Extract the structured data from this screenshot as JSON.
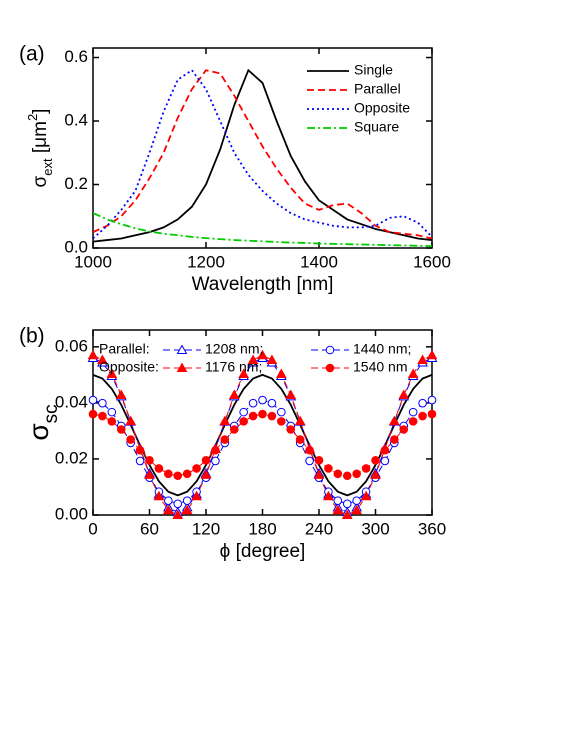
{
  "chart_data": [
    {
      "type": "line",
      "panel_label": "(a)",
      "xlabel": "Wavelength [nm]",
      "ylabel": [
        "σ",
        "ext",
        " [μm",
        "2",
        "]"
      ],
      "x": [
        1000,
        1025,
        1050,
        1075,
        1100,
        1125,
        1150,
        1175,
        1200,
        1225,
        1250,
        1275,
        1300,
        1325,
        1350,
        1375,
        1400,
        1425,
        1450,
        1475,
        1500,
        1525,
        1550,
        1575,
        1600
      ],
      "xlim": [
        1000,
        1600
      ],
      "xticks": [
        1000,
        1200,
        1400,
        1600
      ],
      "ylim": [
        0,
        0.63
      ],
      "yticks": [
        {
          "value": 0,
          "label": "0.0"
        },
        0.2,
        0.4,
        0.6
      ],
      "legend": "upper right",
      "series": [
        {
          "name": "Single",
          "color": "#000000",
          "dash": "solid",
          "values": [
            0.02,
            0.025,
            0.03,
            0.04,
            0.05,
            0.065,
            0.09,
            0.13,
            0.2,
            0.31,
            0.45,
            0.56,
            0.52,
            0.4,
            0.29,
            0.21,
            0.15,
            0.12,
            0.09,
            0.075,
            0.06,
            0.05,
            0.04,
            0.03,
            0.025
          ]
        },
        {
          "name": "Parallel",
          "color": "#ff0000",
          "dash": "dashed",
          "values": [
            0.05,
            0.07,
            0.1,
            0.15,
            0.22,
            0.3,
            0.41,
            0.5,
            0.56,
            0.55,
            0.48,
            0.4,
            0.32,
            0.25,
            0.19,
            0.14,
            0.12,
            0.135,
            0.14,
            0.11,
            0.07,
            0.05,
            0.045,
            0.04,
            0.03
          ]
        },
        {
          "name": "Opposite",
          "color": "#0000ff",
          "dash": "dotted",
          "values": [
            0.03,
            0.07,
            0.12,
            0.18,
            0.3,
            0.43,
            0.53,
            0.56,
            0.5,
            0.4,
            0.3,
            0.23,
            0.18,
            0.14,
            0.11,
            0.09,
            0.08,
            0.07,
            0.065,
            0.065,
            0.07,
            0.095,
            0.1,
            0.08,
            0.035
          ]
        },
        {
          "name": "Square",
          "color": "#00cc00",
          "dash": "dashdot",
          "values": [
            0.11,
            0.09,
            0.075,
            0.062,
            0.052,
            0.045,
            0.04,
            0.035,
            0.031,
            0.028,
            0.025,
            0.023,
            0.021,
            0.019,
            0.017,
            0.016,
            0.014,
            0.013,
            0.012,
            0.011,
            0.01,
            0.009,
            0.008,
            0.007,
            0.006
          ]
        }
      ]
    },
    {
      "type": "line",
      "panel_label": "(b)",
      "xlabel": "ϕ [degree]",
      "ylabel": [
        "σ",
        "sc"
      ],
      "x": [
        0,
        10,
        20,
        30,
        40,
        50,
        60,
        70,
        80,
        90,
        100,
        110,
        120,
        130,
        140,
        150,
        160,
        170,
        180,
        190,
        200,
        210,
        220,
        230,
        240,
        250,
        260,
        270,
        280,
        290,
        300,
        310,
        320,
        330,
        340,
        350,
        360
      ],
      "xlim": [
        0,
        360
      ],
      "xticks": [
        0,
        60,
        120,
        180,
        240,
        300,
        360
      ],
      "ylim": [
        0,
        0.066
      ],
      "yticks": [
        {
          "value": 0,
          "label": "0.00"
        },
        {
          "value": 0.02,
          "label": "0.02"
        },
        {
          "value": 0.04,
          "label": "0.04"
        },
        {
          "value": 0.06,
          "label": "0.06"
        }
      ],
      "legend": "top",
      "legend_groups": [
        "Parallel:",
        "Opposite:"
      ],
      "series": [
        {
          "color": "#000000",
          "dash": "solid",
          "marker": "none",
          "values": [
            0.05,
            0.0487,
            0.045,
            0.0393,
            0.0322,
            0.0248,
            0.0178,
            0.012,
            0.0083,
            0.007,
            0.0083,
            0.012,
            0.0178,
            0.0248,
            0.0322,
            0.0393,
            0.045,
            0.0487,
            0.05,
            0.0487,
            0.045,
            0.0393,
            0.0322,
            0.0248,
            0.0178,
            0.012,
            0.0083,
            0.007,
            0.0083,
            0.012,
            0.0178,
            0.0248,
            0.0322,
            0.0393,
            0.045,
            0.0487,
            0.05
          ]
        },
        {
          "name": "1208 nm;",
          "group": 0,
          "color": "#0000ff",
          "dash": "dashed",
          "marker": "triangle",
          "filled": false,
          "values": [
            0.056,
            0.0544,
            0.0496,
            0.0423,
            0.0333,
            0.0237,
            0.0148,
            0.0074,
            0.0027,
            0.001,
            0.0027,
            0.0074,
            0.0148,
            0.0237,
            0.0333,
            0.0423,
            0.0496,
            0.0544,
            0.056,
            0.0544,
            0.0496,
            0.0423,
            0.0333,
            0.0237,
            0.0148,
            0.0074,
            0.0027,
            0.001,
            0.0027,
            0.0074,
            0.0148,
            0.0237,
            0.0333,
            0.0423,
            0.0496,
            0.0544,
            0.056
          ]
        },
        {
          "name": "1440 nm;",
          "group": 0,
          "color": "#0000ff",
          "dash": "dashed",
          "marker": "circle",
          "filled": false,
          "values": [
            0.041,
            0.0399,
            0.0367,
            0.0318,
            0.0257,
            0.0193,
            0.0133,
            0.0083,
            0.0051,
            0.004,
            0.0051,
            0.0083,
            0.0133,
            0.0193,
            0.0257,
            0.0318,
            0.0367,
            0.0399,
            0.041,
            0.0399,
            0.0367,
            0.0318,
            0.0257,
            0.0193,
            0.0133,
            0.0083,
            0.0051,
            0.004,
            0.0051,
            0.0083,
            0.0133,
            0.0193,
            0.0257,
            0.0318,
            0.0367,
            0.0399,
            0.041
          ]
        },
        {
          "name": "1176 nm;",
          "group": 1,
          "color": "#ff0000",
          "dash": "dashed",
          "marker": "triangle",
          "filled": true,
          "values": [
            0.057,
            0.0553,
            0.0503,
            0.0428,
            0.0335,
            0.0235,
            0.0143,
            0.0067,
            0.0017,
            0.0,
            0.0017,
            0.0067,
            0.0143,
            0.0235,
            0.0335,
            0.0428,
            0.0503,
            0.0553,
            0.057,
            0.0553,
            0.0503,
            0.0428,
            0.0335,
            0.0235,
            0.0143,
            0.0067,
            0.0017,
            0.0,
            0.0017,
            0.0067,
            0.0143,
            0.0235,
            0.0335,
            0.0428,
            0.0503,
            0.0553,
            0.057
          ]
        },
        {
          "name": "1540 nm",
          "group": 1,
          "color": "#ff0000",
          "dash": "dashed",
          "marker": "circle",
          "filled": true,
          "values": [
            0.036,
            0.0353,
            0.0334,
            0.0305,
            0.0269,
            0.0231,
            0.0195,
            0.0166,
            0.0147,
            0.014,
            0.0147,
            0.0166,
            0.0195,
            0.0231,
            0.0269,
            0.0305,
            0.0334,
            0.0353,
            0.036,
            0.0353,
            0.0334,
            0.0305,
            0.0269,
            0.0231,
            0.0195,
            0.0166,
            0.0147,
            0.014,
            0.0147,
            0.0166,
            0.0195,
            0.0231,
            0.0269,
            0.0305,
            0.0334,
            0.0353,
            0.036
          ]
        }
      ]
    }
  ]
}
